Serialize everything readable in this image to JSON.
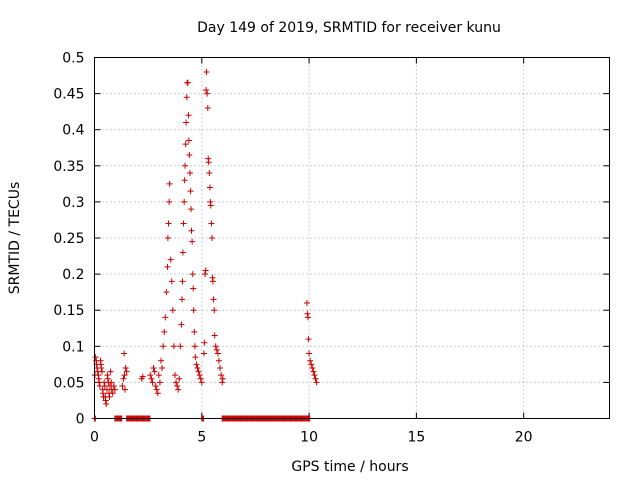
{
  "chart_data": {
    "type": "scatter",
    "title": "Day 149 of 2019, SRMTID for receiver kunu",
    "xlabel": "GPS time / hours",
    "ylabel": "SRMTID / TECUs",
    "xlim": [
      0,
      24
    ],
    "ylim": [
      0,
      0.5
    ],
    "x_ticks": [
      0,
      5,
      10,
      15,
      20
    ],
    "x_tick_labels": [
      "0",
      "5",
      "10",
      "15",
      "20"
    ],
    "y_ticks": [
      0,
      0.05,
      0.1,
      0.15,
      0.2,
      0.25,
      0.3,
      0.35,
      0.4,
      0.45,
      0.5
    ],
    "y_tick_labels": [
      "0",
      "0.05",
      "0.1",
      "0.15",
      "0.2",
      "0.25",
      "0.3",
      "0.35",
      "0.4",
      "0.45",
      "0.5"
    ],
    "grid": true,
    "marker": "plus",
    "color": "#cc0000",
    "series": [
      {
        "name": "SRMTID",
        "points": [
          [
            0.02,
            0.06
          ],
          [
            0.05,
            0.085
          ],
          [
            0.08,
            0.08
          ],
          [
            0.1,
            0.075
          ],
          [
            0.12,
            0.07
          ],
          [
            0.15,
            0.065
          ],
          [
            0.18,
            0.06
          ],
          [
            0.2,
            0.055
          ],
          [
            0.22,
            0.05
          ],
          [
            0.25,
            0.045
          ],
          [
            0.28,
            0.08
          ],
          [
            0.3,
            0.075
          ],
          [
            0.32,
            0.07
          ],
          [
            0.35,
            0.065
          ],
          [
            0.38,
            0.04
          ],
          [
            0.4,
            0.035
          ],
          [
            0.42,
            0.03
          ],
          [
            0.45,
            0.05
          ],
          [
            0.48,
            0.045
          ],
          [
            0.5,
            0.03
          ],
          [
            0.52,
            0.025
          ],
          [
            0.55,
            0.02
          ],
          [
            0.58,
            0.04
          ],
          [
            0.6,
            0.06
          ],
          [
            0.62,
            0.055
          ],
          [
            0.65,
            0.05
          ],
          [
            0.68,
            0.035
          ],
          [
            0.7,
            0.03
          ],
          [
            0.72,
            0.045
          ],
          [
            0.75,
            0.065
          ],
          [
            0.78,
            0.05
          ],
          [
            0.8,
            0.04
          ],
          [
            0.85,
            0.035
          ],
          [
            0.9,
            0.045
          ],
          [
            0.95,
            0.04
          ],
          [
            1.3,
            0.045
          ],
          [
            1.35,
            0.055
          ],
          [
            1.4,
            0.06
          ],
          [
            1.45,
            0.07
          ],
          [
            1.5,
            0.065
          ],
          [
            1.38,
            0.09
          ],
          [
            1.42,
            0.04
          ],
          [
            2.2,
            0.055
          ],
          [
            2.25,
            0.058
          ],
          [
            2.6,
            0.06
          ],
          [
            2.65,
            0.055
          ],
          [
            2.7,
            0.05
          ],
          [
            2.75,
            0.07
          ],
          [
            2.8,
            0.065
          ],
          [
            2.85,
            0.045
          ],
          [
            2.9,
            0.04
          ],
          [
            2.95,
            0.035
          ],
          [
            3.0,
            0.06
          ],
          [
            3.05,
            0.05
          ],
          [
            3.1,
            0.08
          ],
          [
            3.15,
            0.07
          ],
          [
            3.2,
            0.1
          ],
          [
            3.25,
            0.12
          ],
          [
            3.3,
            0.14
          ],
          [
            3.35,
            0.175
          ],
          [
            3.4,
            0.21
          ],
          [
            3.42,
            0.25
          ],
          [
            3.45,
            0.27
          ],
          [
            3.48,
            0.3
          ],
          [
            3.5,
            0.325
          ],
          [
            3.55,
            0.22
          ],
          [
            3.6,
            0.19
          ],
          [
            3.65,
            0.15
          ],
          [
            3.7,
            0.1
          ],
          [
            3.75,
            0.06
          ],
          [
            3.8,
            0.05
          ],
          [
            3.85,
            0.045
          ],
          [
            3.9,
            0.04
          ],
          [
            3.95,
            0.055
          ],
          [
            4.0,
            0.1
          ],
          [
            4.05,
            0.13
          ],
          [
            4.08,
            0.165
          ],
          [
            4.1,
            0.19
          ],
          [
            4.12,
            0.23
          ],
          [
            4.15,
            0.27
          ],
          [
            4.18,
            0.3
          ],
          [
            4.2,
            0.33
          ],
          [
            4.22,
            0.35
          ],
          [
            4.25,
            0.38
          ],
          [
            4.27,
            0.41
          ],
          [
            4.3,
            0.445
          ],
          [
            4.32,
            0.465
          ],
          [
            4.35,
            0.465
          ],
          [
            4.38,
            0.42
          ],
          [
            4.4,
            0.385
          ],
          [
            4.42,
            0.365
          ],
          [
            4.45,
            0.34
          ],
          [
            4.48,
            0.315
          ],
          [
            4.5,
            0.29
          ],
          [
            4.52,
            0.26
          ],
          [
            4.55,
            0.245
          ],
          [
            4.58,
            0.2
          ],
          [
            4.6,
            0.18
          ],
          [
            4.62,
            0.15
          ],
          [
            4.65,
            0.12
          ],
          [
            4.68,
            0.1
          ],
          [
            4.7,
            0.085
          ],
          [
            4.75,
            0.075
          ],
          [
            4.8,
            0.07
          ],
          [
            4.85,
            0.065
          ],
          [
            4.9,
            0.06
          ],
          [
            4.95,
            0.055
          ],
          [
            5.0,
            0.05
          ],
          [
            5.1,
            0.09
          ],
          [
            5.12,
            0.105
          ],
          [
            5.15,
            0.2
          ],
          [
            5.18,
            0.205
          ],
          [
            5.2,
            0.455
          ],
          [
            5.22,
            0.48
          ],
          [
            5.25,
            0.45
          ],
          [
            5.28,
            0.43
          ],
          [
            5.3,
            0.36
          ],
          [
            5.32,
            0.355
          ],
          [
            5.35,
            0.34
          ],
          [
            5.38,
            0.32
          ],
          [
            5.4,
            0.3
          ],
          [
            5.42,
            0.295
          ],
          [
            5.45,
            0.27
          ],
          [
            5.48,
            0.25
          ],
          [
            5.5,
            0.195
          ],
          [
            5.52,
            0.19
          ],
          [
            5.55,
            0.165
          ],
          [
            5.58,
            0.15
          ],
          [
            5.6,
            0.115
          ],
          [
            5.65,
            0.1
          ],
          [
            5.7,
            0.095
          ],
          [
            5.75,
            0.09
          ],
          [
            5.8,
            0.08
          ],
          [
            5.85,
            0.07
          ],
          [
            5.9,
            0.06
          ],
          [
            5.95,
            0.05
          ],
          [
            5.98,
            0.055
          ],
          [
            9.9,
            0.16
          ],
          [
            9.92,
            0.145
          ],
          [
            9.95,
            0.14
          ],
          [
            9.97,
            0.11
          ],
          [
            10.0,
            0.09
          ],
          [
            10.05,
            0.08
          ],
          [
            10.1,
            0.075
          ],
          [
            10.15,
            0.07
          ],
          [
            10.2,
            0.065
          ],
          [
            10.25,
            0.06
          ],
          [
            10.3,
            0.055
          ],
          [
            10.35,
            0.05
          ]
        ],
        "zero_ranges": [
          [
            0,
            0.05
          ],
          [
            0.95,
            1.3
          ],
          [
            1.5,
            2.6
          ],
          [
            5.0,
            5.1
          ],
          [
            5.95,
            10.05
          ]
        ]
      }
    ]
  }
}
